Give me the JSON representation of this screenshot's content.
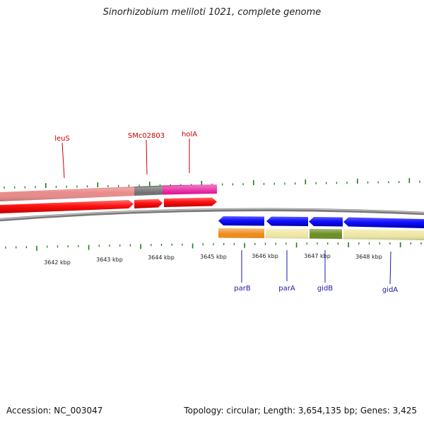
{
  "title": "Sinorhizobium meliloti 1021, complete genome",
  "footer": {
    "accession": "Accession: NC_003047",
    "summary": "Topology: circular; Length: 3,654,135 bp; Genes: 3,425"
  },
  "colors": {
    "tick": "#1e7a1e",
    "forward_label": "#cc0000",
    "reverse_label": "#1a1aaa",
    "backbone": "#7a7a7a"
  },
  "scale": {
    "unit": "kbp",
    "labels": [
      "3642 kbp",
      "3643 kbp",
      "3644 kbp",
      "3645 kbp",
      "3646 kbp",
      "3647 kbp",
      "3648 kbp"
    ]
  },
  "forward_genes": [
    {
      "name": "leuS",
      "color": "#e98a8a"
    },
    {
      "name": "SMc02803",
      "color": "#707070"
    },
    {
      "name": "holA",
      "color": "#e5199a"
    }
  ],
  "reverse_genes": [
    {
      "name": "parB",
      "color": "#ef8a17"
    },
    {
      "name": "parA",
      "color": "#eee8a4"
    },
    {
      "name": "gidB",
      "color": "#6b8e23"
    },
    {
      "name": "gidA",
      "color": "#eee8a4"
    }
  ]
}
